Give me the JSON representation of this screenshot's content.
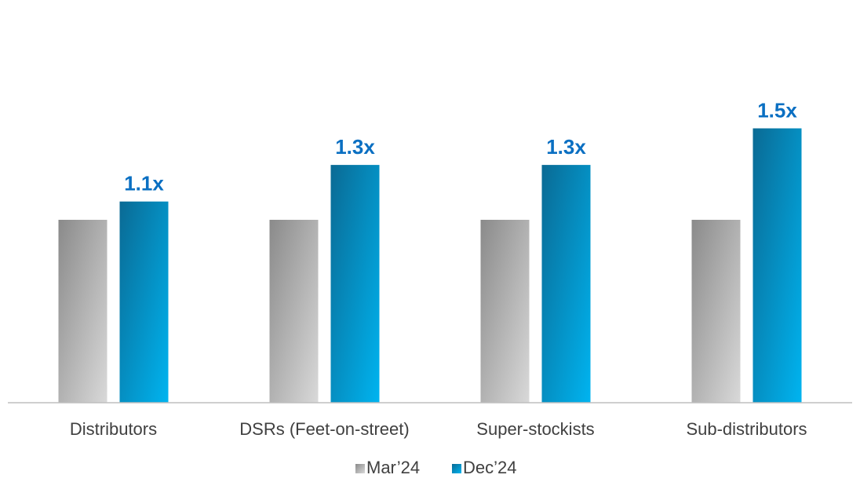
{
  "chart_data": {
    "type": "bar",
    "categories": [
      "Distributors",
      "DSRs (Feet-on-street)",
      "Super-stockists",
      "Sub-distributors"
    ],
    "series": [
      {
        "name": "Mar’24",
        "values": [
          1.0,
          1.0,
          1.0,
          1.0
        ],
        "color": "#a6a6a6"
      },
      {
        "name": "Dec’24",
        "values": [
          1.1,
          1.3,
          1.3,
          1.5
        ],
        "color": "#0ea5e0"
      }
    ],
    "data_labels": [
      "1.1x",
      "1.3x",
      "1.3x",
      "1.5x"
    ],
    "data_label_color": "#0a6fc2",
    "ylim": [
      0,
      1.5
    ],
    "grid": false,
    "legend_position": "bottom"
  }
}
